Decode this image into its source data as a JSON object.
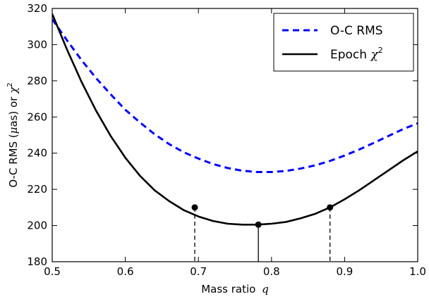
{
  "chart_data": {
    "type": "line",
    "xlabel": "Mass ratio",
    "xlabel_symbol": "q",
    "ylabel_prefix": "O-C RMS (",
    "ylabel_mu": "μ",
    "ylabel_mid": "as) or ",
    "ylabel_chi": "χ",
    "ylabel_sup": "2",
    "xlim": [
      0.5,
      1.0
    ],
    "ylim": [
      180,
      320
    ],
    "xticks": [
      "0.5",
      "0.6",
      "0.7",
      "0.8",
      "0.9",
      "1.0"
    ],
    "yticks": [
      "180",
      "200",
      "220",
      "240",
      "260",
      "280",
      "300",
      "320"
    ],
    "grid": false,
    "legend": {
      "placement": "top-right",
      "entries": [
        {
          "label": "O-C RMS",
          "symbol": "",
          "sup": ""
        },
        {
          "label": "Epoch ",
          "symbol": "χ",
          "sup": "2"
        }
      ]
    },
    "series": [
      {
        "name": "O-C RMS",
        "style": "dashed",
        "color": "#0000ff",
        "x": [
          0.5,
          0.52,
          0.54,
          0.56,
          0.58,
          0.6,
          0.62,
          0.64,
          0.66,
          0.68,
          0.7,
          0.72,
          0.74,
          0.76,
          0.78,
          0.8,
          0.82,
          0.84,
          0.86,
          0.88,
          0.9,
          0.92,
          0.94,
          0.96,
          0.98,
          1.0
        ],
        "y": [
          314.0,
          302.5,
          291.5,
          281.5,
          272.5,
          264.0,
          257.0,
          250.5,
          245.0,
          240.5,
          237.0,
          234.0,
          231.8,
          230.3,
          229.6,
          229.6,
          230.2,
          231.5,
          233.3,
          235.7,
          238.7,
          242.0,
          245.7,
          249.5,
          253.3,
          256.5
        ]
      },
      {
        "name": "Epoch χ2",
        "style": "solid",
        "color": "#000000",
        "x": [
          0.5,
          0.52,
          0.54,
          0.56,
          0.58,
          0.6,
          0.62,
          0.64,
          0.66,
          0.68,
          0.7,
          0.72,
          0.74,
          0.76,
          0.78,
          0.8,
          0.82,
          0.84,
          0.86,
          0.88,
          0.9,
          0.92,
          0.94,
          0.96,
          0.98,
          1.0
        ],
        "y": [
          317.0,
          297.5,
          279.5,
          263.5,
          249.5,
          237.5,
          227.5,
          219.5,
          213.5,
          208.5,
          205.0,
          202.5,
          201.0,
          200.5,
          200.5,
          201.0,
          202.0,
          204.0,
          206.5,
          210.0,
          214.5,
          219.5,
          225.0,
          230.5,
          236.0,
          241.0
        ]
      }
    ],
    "markers": [
      {
        "x": 0.695,
        "y": 210,
        "line_style": "dashed"
      },
      {
        "x": 0.782,
        "y": 200.5,
        "line_style": "solid"
      },
      {
        "x": 0.88,
        "y": 210,
        "line_style": "dashed"
      }
    ]
  }
}
